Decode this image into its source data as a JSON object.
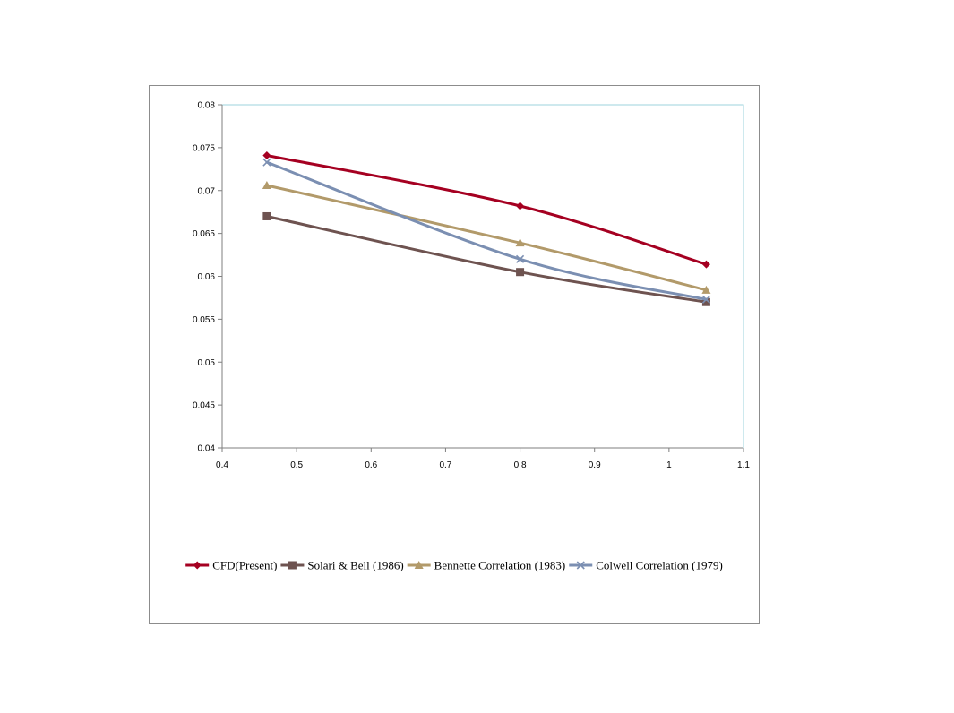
{
  "chart_data": {
    "type": "line",
    "title": "",
    "xlabel": "",
    "ylabel": "",
    "xlim": [
      0.4,
      1.1
    ],
    "ylim": [
      0.04,
      0.08
    ],
    "x_ticks": [
      "0.4",
      "0.5",
      "0.6",
      "0.7",
      "0.8",
      "0.9",
      "1",
      "1.1"
    ],
    "y_ticks": [
      "0.04",
      "0.045",
      "0.05",
      "0.055",
      "0.06",
      "0.065",
      "0.07",
      "0.075",
      "0.08"
    ],
    "grid": false,
    "legend_position": "bottom",
    "x": [
      0.46,
      0.8,
      1.05
    ],
    "series": [
      {
        "name": "CFD(Present)",
        "values": [
          0.0741,
          0.0682,
          0.0614
        ],
        "color": "#a50021",
        "marker": "diamond"
      },
      {
        "name": "Solari & Bell (1986)",
        "values": [
          0.067,
          0.0605,
          0.057
        ],
        "color": "#6e5350",
        "marker": "square"
      },
      {
        "name": "Bennette Correlation (1983)",
        "values": [
          0.0706,
          0.0639,
          0.0584
        ],
        "color": "#b29a6a",
        "marker": "triangle"
      },
      {
        "name": "Colwell Correlation (1979)",
        "values": [
          0.0733,
          0.062,
          0.0573
        ],
        "color": "#7b8fb2",
        "marker": "x"
      }
    ]
  }
}
